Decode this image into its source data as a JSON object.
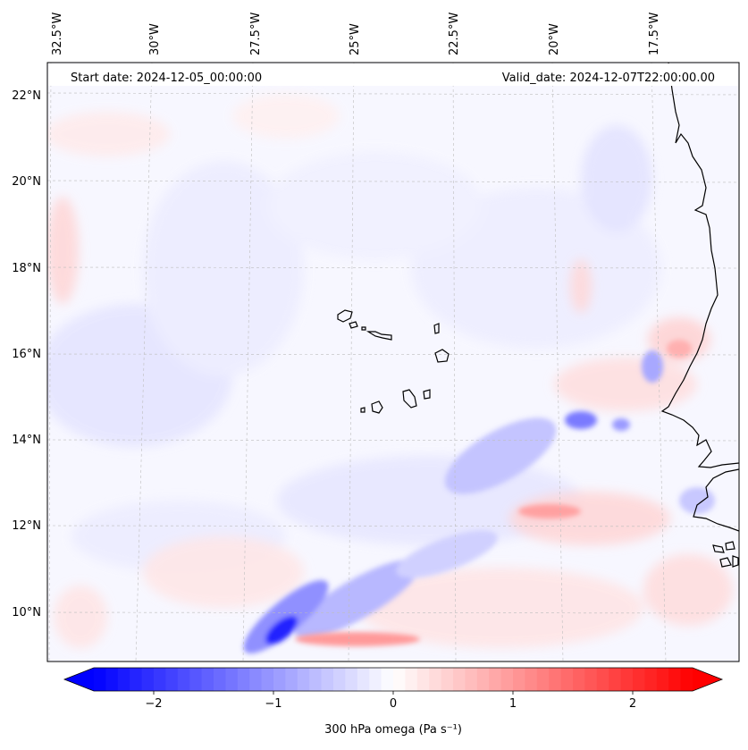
{
  "annotations": {
    "start_date": "Start date: 2024-12-05_00:00:00",
    "valid_date": "Valid_date: 2024-12-07T22:00:00.00"
  },
  "map": {
    "lon_labels": [
      "32.5°W",
      "30°W",
      "27.5°W",
      "25°W",
      "22.5°W",
      "20°W",
      "17.5°W"
    ],
    "lat_labels": [
      "22°N",
      "20°N",
      "18°N",
      "16°N",
      "14°N",
      "12°N",
      "10°N"
    ],
    "gridlines": true,
    "coastline_color": "#000000"
  },
  "colorbar": {
    "label": "300 hPa omega (Pa s⁻¹)",
    "ticks": [
      "−2",
      "−1",
      "0",
      "1",
      "2"
    ],
    "tick_values": [
      -2,
      -1,
      0,
      1,
      2
    ],
    "range": [
      -2.5,
      2.5
    ],
    "extend": "both",
    "colormap": "bwr",
    "color_low": "#0000ff",
    "color_mid": "#ffffff",
    "color_high": "#ff0000"
  }
}
